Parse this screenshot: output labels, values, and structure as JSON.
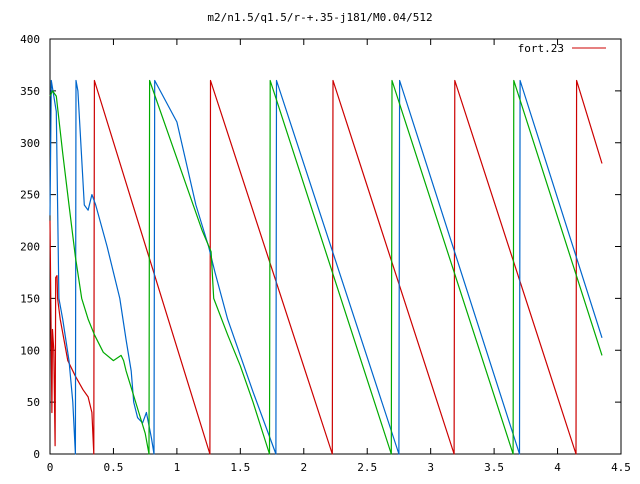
{
  "chart_data": {
    "type": "line",
    "title": "m2/n1.5/q1.5/r-+.35-j181/M0.04/512",
    "xlabel": "",
    "ylabel": "",
    "xlim": [
      0,
      4.5
    ],
    "ylim": [
      0,
      400
    ],
    "x_ticks": [
      0,
      0.5,
      1,
      1.5,
      2,
      2.5,
      3,
      3.5,
      4,
      4.5
    ],
    "x_tick_labels": [
      "0",
      "0.5",
      "1",
      "1.5",
      "2",
      "2.5",
      "3",
      "3.5",
      "4",
      "4.5"
    ],
    "y_ticks": [
      0,
      50,
      100,
      150,
      200,
      250,
      300,
      350,
      400
    ],
    "y_tick_labels": [
      "0",
      "50",
      "100",
      "150",
      "200",
      "250",
      "300",
      "350",
      "400"
    ],
    "grid": false,
    "legend_position": "top-right",
    "series": [
      {
        "name": "fort.23",
        "color": "#cc0000",
        "points": [
          [
            0.0,
            225
          ],
          [
            0.015,
            40
          ],
          [
            0.02,
            120
          ],
          [
            0.03,
            100
          ],
          [
            0.04,
            8
          ],
          [
            0.045,
            170
          ],
          [
            0.055,
            172
          ],
          [
            0.06,
            150
          ],
          [
            0.08,
            130
          ],
          [
            0.14,
            90
          ],
          [
            0.2,
            75
          ],
          [
            0.26,
            62
          ],
          [
            0.3,
            55
          ],
          [
            0.33,
            40
          ],
          [
            0.345,
            0
          ],
          [
            0.35,
            360
          ],
          [
            1.26,
            0
          ],
          [
            1.265,
            360
          ],
          [
            2.225,
            0
          ],
          [
            2.23,
            360
          ],
          [
            3.185,
            0
          ],
          [
            3.19,
            360
          ],
          [
            4.145,
            0
          ],
          [
            4.15,
            360
          ],
          [
            4.35,
            280
          ]
        ]
      },
      {
        "name": "",
        "color": "#0066cc",
        "points": [
          [
            0.0,
            230
          ],
          [
            0.01,
            360
          ],
          [
            0.05,
            330
          ],
          [
            0.07,
            150
          ],
          [
            0.1,
            130
          ],
          [
            0.15,
            90
          ],
          [
            0.18,
            50
          ],
          [
            0.2,
            0
          ],
          [
            0.205,
            360
          ],
          [
            0.22,
            350
          ],
          [
            0.27,
            240
          ],
          [
            0.3,
            235
          ],
          [
            0.33,
            250
          ],
          [
            0.36,
            240
          ],
          [
            0.45,
            200
          ],
          [
            0.55,
            150
          ],
          [
            0.6,
            110
          ],
          [
            0.64,
            80
          ],
          [
            0.66,
            50
          ],
          [
            0.69,
            35
          ],
          [
            0.73,
            30
          ],
          [
            0.76,
            40
          ],
          [
            0.8,
            15
          ],
          [
            0.82,
            0
          ],
          [
            0.825,
            360
          ],
          [
            1.0,
            320
          ],
          [
            1.15,
            240
          ],
          [
            1.25,
            200
          ],
          [
            1.3,
            175
          ],
          [
            1.4,
            130
          ],
          [
            1.6,
            60
          ],
          [
            1.78,
            0
          ],
          [
            1.785,
            360
          ],
          [
            2.75,
            0
          ],
          [
            2.755,
            360
          ],
          [
            3.7,
            0
          ],
          [
            3.705,
            360
          ],
          [
            4.35,
            112
          ]
        ]
      },
      {
        "name": "",
        "color": "#00aa00",
        "points": [
          [
            0.0,
            345
          ],
          [
            0.02,
            350
          ],
          [
            0.05,
            345
          ],
          [
            0.1,
            290
          ],
          [
            0.15,
            240
          ],
          [
            0.2,
            190
          ],
          [
            0.25,
            150
          ],
          [
            0.3,
            130
          ],
          [
            0.35,
            115
          ],
          [
            0.42,
            98
          ],
          [
            0.5,
            90
          ],
          [
            0.56,
            95
          ],
          [
            0.58,
            90
          ],
          [
            0.6,
            80
          ],
          [
            0.65,
            60
          ],
          [
            0.7,
            40
          ],
          [
            0.75,
            20
          ],
          [
            0.78,
            0
          ],
          [
            0.785,
            360
          ],
          [
            1.2,
            215
          ],
          [
            1.27,
            195
          ],
          [
            1.29,
            150
          ],
          [
            1.4,
            115
          ],
          [
            1.5,
            85
          ],
          [
            1.6,
            50
          ],
          [
            1.73,
            0
          ],
          [
            1.735,
            360
          ],
          [
            2.69,
            0
          ],
          [
            2.695,
            360
          ],
          [
            3.65,
            0
          ],
          [
            3.655,
            360
          ],
          [
            4.35,
            95
          ]
        ]
      }
    ]
  }
}
